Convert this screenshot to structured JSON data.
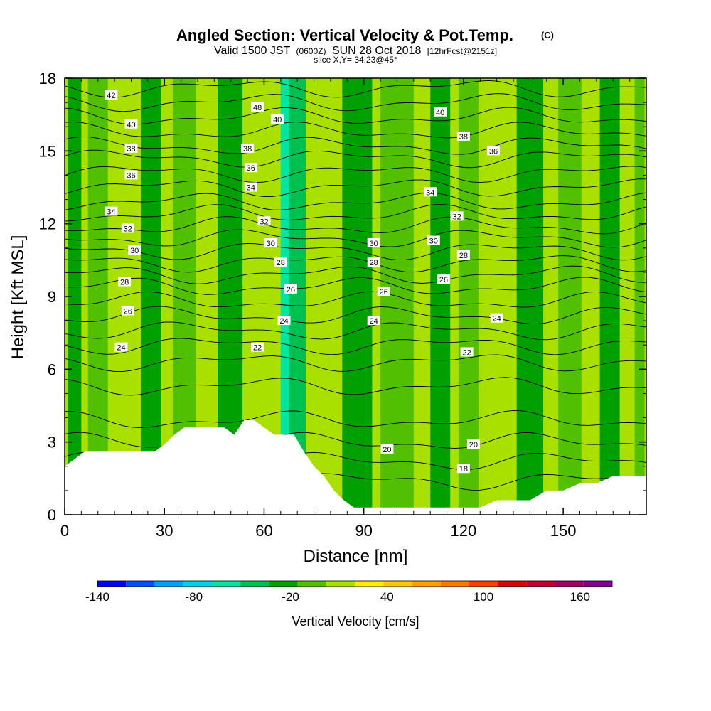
{
  "title": "Angled Section: Vertical Velocity & Pot.Temp.",
  "title_suffix": "(C)",
  "subtitle_pre": "Valid 1500 JST",
  "subtitle_paren": "(0600Z)",
  "subtitle_date": "SUN 28 Oct 2018",
  "subtitle_fcst": "[12hrFcst@2151z]",
  "slice_label": "slice X,Y= 34,23@45°",
  "chart_data": {
    "type": "heatmap",
    "xlabel": "Distance [nm]",
    "ylabel": "Height [Kft MSL]",
    "xlim": [
      0,
      175
    ],
    "ylim": [
      0,
      18
    ],
    "x_ticks": [
      0,
      30,
      60,
      90,
      120,
      150
    ],
    "y_ticks": [
      0,
      3,
      6,
      9,
      12,
      15,
      18
    ],
    "colorbar": {
      "title": "Vertical Velocity [cm/s]",
      "tick_labels": [
        "-140",
        "-80",
        "-20",
        "40",
        "100",
        "160"
      ],
      "tick_values": [
        -140,
        -80,
        -20,
        40,
        100,
        160
      ],
      "range": [
        -140,
        180
      ],
      "bin_width": 20,
      "colors": [
        "#0000ff",
        "#0050ff",
        "#00a0ff",
        "#00d2e6",
        "#00e6a0",
        "#00c050",
        "#00a000",
        "#50c000",
        "#aae000",
        "#ffee00",
        "#ffc800",
        "#ffa000",
        "#ff7800",
        "#ff4000",
        "#e00000",
        "#c00030",
        "#a00060",
        "#800090"
      ]
    },
    "vertical_velocity_columns": [
      {
        "x": 3,
        "value": -10,
        "x_width": 4
      },
      {
        "x": 10,
        "value": 5,
        "x_width": 6
      },
      {
        "x": 20,
        "value": 35,
        "x_width": 3
      },
      {
        "x": 26,
        "value": -10,
        "x_width": 6
      },
      {
        "x": 36,
        "value": 5,
        "x_width": 7
      },
      {
        "x": 50,
        "value": -15,
        "x_width": 8
      },
      {
        "x": 55,
        "value": 35,
        "x_width": 3
      },
      {
        "x": 67,
        "value": -50,
        "x_width": 4
      },
      {
        "x": 70,
        "value": -30,
        "x_width": 5
      },
      {
        "x": 78,
        "value": 35,
        "x_width": 3
      },
      {
        "x": 88,
        "value": -10,
        "x_width": 9
      },
      {
        "x": 100,
        "value": 5,
        "x_width": 10
      },
      {
        "x": 113,
        "value": -10,
        "x_width": 6
      },
      {
        "x": 122,
        "value": 10,
        "x_width": 7
      },
      {
        "x": 126,
        "value": 30,
        "x_width": 3
      },
      {
        "x": 140,
        "value": -10,
        "x_width": 8
      },
      {
        "x": 152,
        "value": 5,
        "x_width": 7
      },
      {
        "x": 164,
        "value": -10,
        "x_width": 6
      },
      {
        "x": 173,
        "value": 5,
        "x_width": 3
      }
    ],
    "terrain": {
      "x": [
        0,
        3,
        6,
        9,
        12,
        15,
        18,
        21,
        24,
        27,
        30,
        33,
        36,
        39,
        42,
        45,
        48,
        51,
        54,
        57,
        60,
        63,
        66,
        69,
        72,
        75,
        78,
        81,
        84,
        87,
        90,
        93,
        96,
        100,
        105,
        110,
        115,
        120,
        125,
        130,
        135,
        140,
        145,
        150,
        155,
        160,
        165,
        170,
        175
      ],
      "height": [
        2.0,
        2.3,
        2.6,
        2.6,
        2.6,
        2.6,
        2.6,
        2.6,
        2.6,
        2.6,
        2.9,
        3.3,
        3.6,
        3.6,
        3.6,
        3.6,
        3.6,
        3.3,
        3.9,
        3.9,
        3.6,
        3.3,
        3.3,
        3.3,
        2.6,
        2.0,
        1.6,
        1.0,
        0.6,
        0.3,
        0.3,
        0.3,
        0.3,
        0.3,
        0.3,
        0.3,
        0.3,
        0.3,
        0.3,
        0.6,
        0.6,
        0.6,
        1.0,
        1.0,
        1.3,
        1.3,
        1.6,
        1.6,
        1.6
      ]
    },
    "isentropes": {
      "base_heights": [
        {
          "theta": 18,
          "height": 1.4
        },
        {
          "theta": 19,
          "height": 2.2
        },
        {
          "theta": 20,
          "height": 3.0
        },
        {
          "theta": 21,
          "height": 3.9
        },
        {
          "theta": 22,
          "height": 5.3
        },
        {
          "theta": 23,
          "height": 6.3
        },
        {
          "theta": 24,
          "height": 7.0
        },
        {
          "theta": 25,
          "height": 7.6
        },
        {
          "theta": 26,
          "height": 8.2
        },
        {
          "theta": 27,
          "height": 8.8
        },
        {
          "theta": 28,
          "height": 9.4
        },
        {
          "theta": 29,
          "height": 9.9
        },
        {
          "theta": 30,
          "height": 10.4
        },
        {
          "theta": 31,
          "height": 10.9
        },
        {
          "theta": 32,
          "height": 11.4
        },
        {
          "theta": 33,
          "height": 11.9
        },
        {
          "theta": 34,
          "height": 12.4
        },
        {
          "theta": 35,
          "height": 12.9
        },
        {
          "theta": 36,
          "height": 13.5
        },
        {
          "theta": 37,
          "height": 14.1
        },
        {
          "theta": 38,
          "height": 14.7
        },
        {
          "theta": 39,
          "height": 15.2
        },
        {
          "theta": 40,
          "height": 15.8
        },
        {
          "theta": 41,
          "height": 16.4
        },
        {
          "theta": 42,
          "height": 17.0
        },
        {
          "theta": 43,
          "height": 17.6
        }
      ],
      "labels": [
        {
          "text": "42",
          "x": 14,
          "y": 17.3
        },
        {
          "text": "40",
          "x": 20,
          "y": 16.1
        },
        {
          "text": "38",
          "x": 20,
          "y": 15.1
        },
        {
          "text": "36",
          "x": 20,
          "y": 14.0
        },
        {
          "text": "34",
          "x": 14,
          "y": 12.5
        },
        {
          "text": "32",
          "x": 19,
          "y": 11.8
        },
        {
          "text": "30",
          "x": 21,
          "y": 10.9
        },
        {
          "text": "28",
          "x": 18,
          "y": 9.6
        },
        {
          "text": "26",
          "x": 19,
          "y": 8.4
        },
        {
          "text": "24",
          "x": 17,
          "y": 6.9
        },
        {
          "text": "22",
          "x": 58,
          "y": 6.9
        },
        {
          "text": "24",
          "x": 66,
          "y": 8.0
        },
        {
          "text": "26",
          "x": 68,
          "y": 9.3
        },
        {
          "text": "28",
          "x": 65,
          "y": 10.4
        },
        {
          "text": "30",
          "x": 62,
          "y": 11.2
        },
        {
          "text": "32",
          "x": 60,
          "y": 12.1
        },
        {
          "text": "34",
          "x": 56,
          "y": 13.5
        },
        {
          "text": "36",
          "x": 56,
          "y": 14.3
        },
        {
          "text": "38",
          "x": 55,
          "y": 15.1
        },
        {
          "text": "48",
          "x": 58,
          "y": 16.8
        },
        {
          "text": "40",
          "x": 64,
          "y": 16.3
        },
        {
          "text": "30",
          "x": 93,
          "y": 11.2
        },
        {
          "text": "28",
          "x": 93,
          "y": 10.4
        },
        {
          "text": "26",
          "x": 96,
          "y": 9.2
        },
        {
          "text": "24",
          "x": 93,
          "y": 8.0
        },
        {
          "text": "22",
          "x": 121,
          "y": 6.7
        },
        {
          "text": "40",
          "x": 113,
          "y": 16.6
        },
        {
          "text": "38",
          "x": 120,
          "y": 15.6
        },
        {
          "text": "36",
          "x": 129,
          "y": 15.0
        },
        {
          "text": "34",
          "x": 110,
          "y": 13.3
        },
        {
          "text": "32",
          "x": 118,
          "y": 12.3
        },
        {
          "text": "30",
          "x": 111,
          "y": 11.3
        },
        {
          "text": "28",
          "x": 120,
          "y": 10.7
        },
        {
          "text": "26",
          "x": 114,
          "y": 9.7
        },
        {
          "text": "24",
          "x": 130,
          "y": 8.1
        },
        {
          "text": "20",
          "x": 97,
          "y": 2.7
        },
        {
          "text": "20",
          "x": 123,
          "y": 2.9
        },
        {
          "text": "18",
          "x": 120,
          "y": 1.9
        }
      ]
    }
  }
}
